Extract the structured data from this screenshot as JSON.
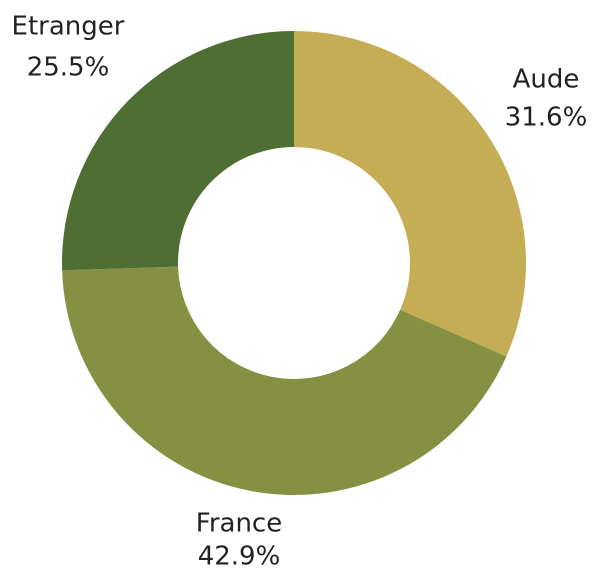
{
  "chart_data": {
    "type": "donut",
    "categories": [
      "Aude",
      "France",
      "Etranger"
    ],
    "values": [
      31.6,
      42.9,
      25.5
    ],
    "value_labels": [
      "31.6%",
      "42.9%",
      "25.5%"
    ],
    "colors": [
      "#c4ad55",
      "#859043",
      "#4e6e34"
    ]
  }
}
